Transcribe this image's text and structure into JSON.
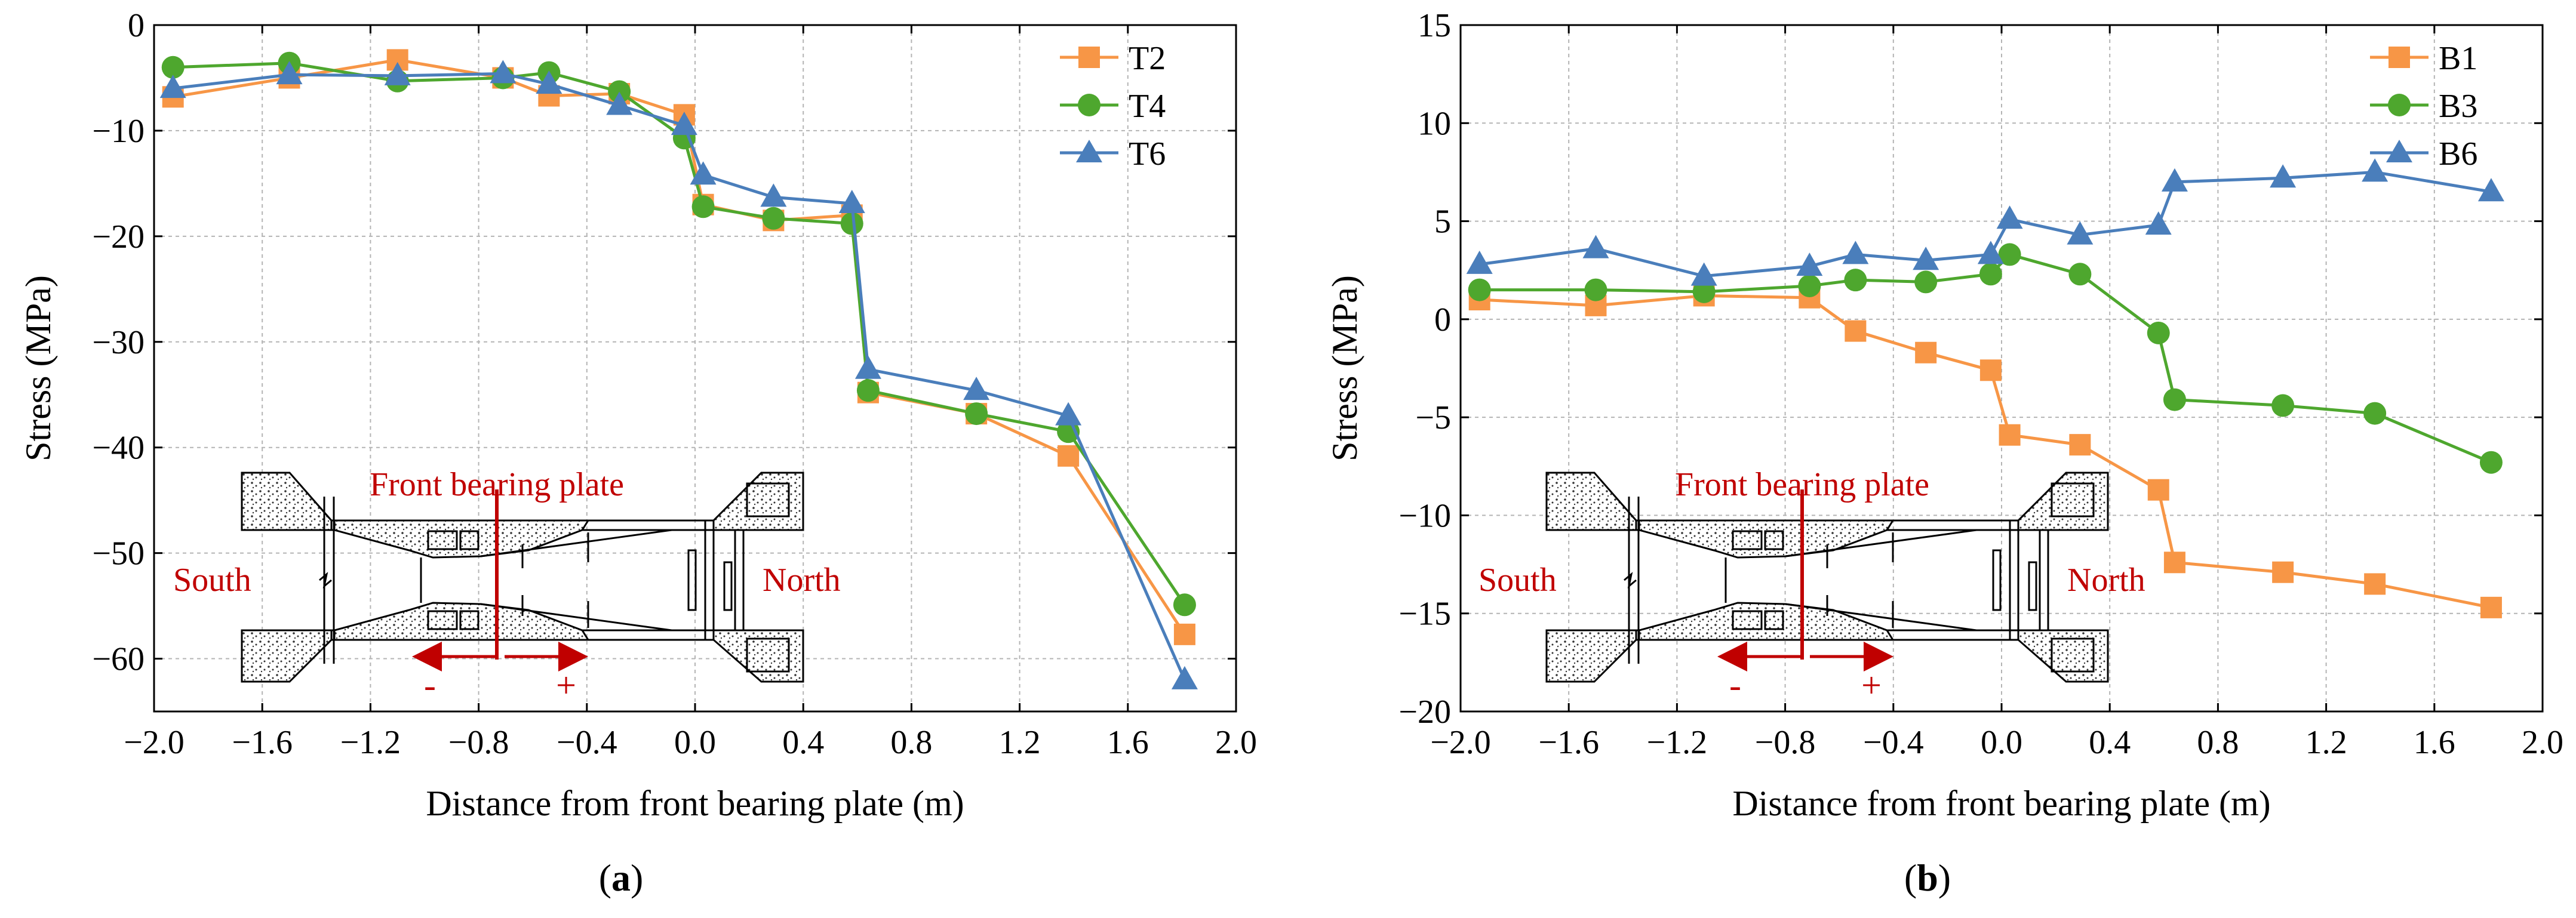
{
  "colors": {
    "orange": "#f79646",
    "green": "#4ea72e",
    "blue": "#4a7ebb",
    "red": "#c00000",
    "grid": "#b4b4b4"
  },
  "schematic": {
    "plate_label": "Front bearing plate",
    "south": "South",
    "north": "North",
    "minus": "-",
    "plus": "+"
  },
  "chart_data": [
    {
      "type": "line",
      "panel_label": "(a)",
      "xlabel": "Distance from front bearing plate (m)",
      "ylabel": "Stress (MPa)",
      "xlim": [
        -2.0,
        2.0
      ],
      "ylim": [
        -65,
        0
      ],
      "xticks": [
        -2.0,
        -1.6,
        -1.2,
        -0.8,
        -0.4,
        0.0,
        0.4,
        0.8,
        1.2,
        1.6,
        2.0
      ],
      "xtick_labels": [
        "−2.0",
        "−1.6",
        "−1.2",
        "−0.8",
        "−0.4",
        "0.0",
        "0.4",
        "0.8",
        "1.2",
        "1.6",
        "2.0"
      ],
      "yticks": [
        0,
        -10,
        -20,
        -30,
        -40,
        -50,
        -60
      ],
      "ytick_labels": [
        "0",
        "−10",
        "−20",
        "−30",
        "−40",
        "−50",
        "−60"
      ],
      "legend_position": "top-right",
      "series": [
        {
          "name": "T2",
          "color": "#f79646",
          "marker": "square",
          "x": [
            -1.93,
            -1.5,
            -1.1,
            -0.71,
            -0.54,
            -0.28,
            -0.04,
            0.03,
            0.29,
            0.58,
            0.64,
            1.04,
            1.38,
            1.81
          ],
          "y": [
            -6.8,
            -5.0,
            -3.3,
            -5.0,
            -6.7,
            -6.5,
            -8.5,
            -17.0,
            -18.5,
            -18.0,
            -34.8,
            -36.8,
            -40.8,
            -57.7
          ]
        },
        {
          "name": "T4",
          "color": "#4ea72e",
          "marker": "circle",
          "x": [
            -1.93,
            -1.5,
            -1.1,
            -0.71,
            -0.54,
            -0.28,
            -0.04,
            0.03,
            0.29,
            0.58,
            0.64,
            1.04,
            1.38,
            1.81
          ],
          "y": [
            -4.0,
            -3.6,
            -5.3,
            -5.0,
            -4.5,
            -6.3,
            -10.7,
            -17.2,
            -18.3,
            -18.8,
            -34.6,
            -36.8,
            -38.5,
            -54.9
          ]
        },
        {
          "name": "T6",
          "color": "#4a7ebb",
          "marker": "triangle",
          "x": [
            -1.93,
            -1.5,
            -1.1,
            -0.71,
            -0.54,
            -0.28,
            -0.04,
            0.03,
            0.29,
            0.58,
            0.64,
            1.04,
            1.38,
            1.81
          ],
          "y": [
            -6.0,
            -4.7,
            -4.8,
            -4.6,
            -5.6,
            -7.6,
            -9.5,
            -14.2,
            -16.3,
            -16.9,
            -32.6,
            -34.6,
            -37.0,
            -62.0
          ]
        }
      ]
    },
    {
      "type": "line",
      "panel_label": "(b)",
      "xlabel": "Distance from front bearing plate (m)",
      "ylabel": "Stress (MPa)",
      "xlim": [
        -2.0,
        2.0
      ],
      "ylim": [
        -20,
        15
      ],
      "xticks": [
        -2.0,
        -1.6,
        -1.2,
        -0.8,
        -0.4,
        0.0,
        0.4,
        0.8,
        1.2,
        1.6,
        2.0
      ],
      "xtick_labels": [
        "−2.0",
        "−1.6",
        "−1.2",
        "−0.8",
        "−0.4",
        "0.0",
        "0.4",
        "0.8",
        "1.2",
        "1.6",
        "2.0"
      ],
      "yticks": [
        15,
        10,
        5,
        0,
        -5,
        -10,
        -15,
        -20
      ],
      "ytick_labels": [
        "15",
        "10",
        "5",
        "0",
        "−5",
        "−10",
        "−15",
        "−20"
      ],
      "legend_position": "top-right",
      "series": [
        {
          "name": "B1",
          "color": "#f79646",
          "marker": "square",
          "x": [
            -1.93,
            -1.5,
            -1.1,
            -0.71,
            -0.54,
            -0.28,
            -0.04,
            0.03,
            0.29,
            0.58,
            0.64,
            1.04,
            1.38,
            1.81
          ],
          "y": [
            1.0,
            0.7,
            1.2,
            1.1,
            -0.6,
            -1.7,
            -2.6,
            -5.9,
            -6.4,
            -8.7,
            -12.4,
            -12.9,
            -13.5,
            -14.7
          ]
        },
        {
          "name": "B3",
          "color": "#4ea72e",
          "marker": "circle",
          "x": [
            -1.93,
            -1.5,
            -1.1,
            -0.71,
            -0.54,
            -0.28,
            -0.04,
            0.03,
            0.29,
            0.58,
            0.64,
            1.04,
            1.38,
            1.81
          ],
          "y": [
            1.5,
            1.5,
            1.4,
            1.7,
            2.0,
            1.9,
            2.3,
            3.3,
            2.3,
            -0.7,
            -4.1,
            -4.4,
            -4.8,
            -7.3
          ]
        },
        {
          "name": "B6",
          "color": "#4a7ebb",
          "marker": "triangle",
          "x": [
            -1.93,
            -1.5,
            -1.1,
            -0.71,
            -0.54,
            -0.28,
            -0.04,
            0.03,
            0.29,
            0.58,
            0.64,
            1.04,
            1.38,
            1.81
          ],
          "y": [
            2.8,
            3.6,
            2.2,
            2.7,
            3.3,
            3.0,
            3.3,
            5.1,
            4.3,
            4.8,
            7.0,
            7.2,
            7.5,
            6.5
          ]
        }
      ]
    }
  ]
}
